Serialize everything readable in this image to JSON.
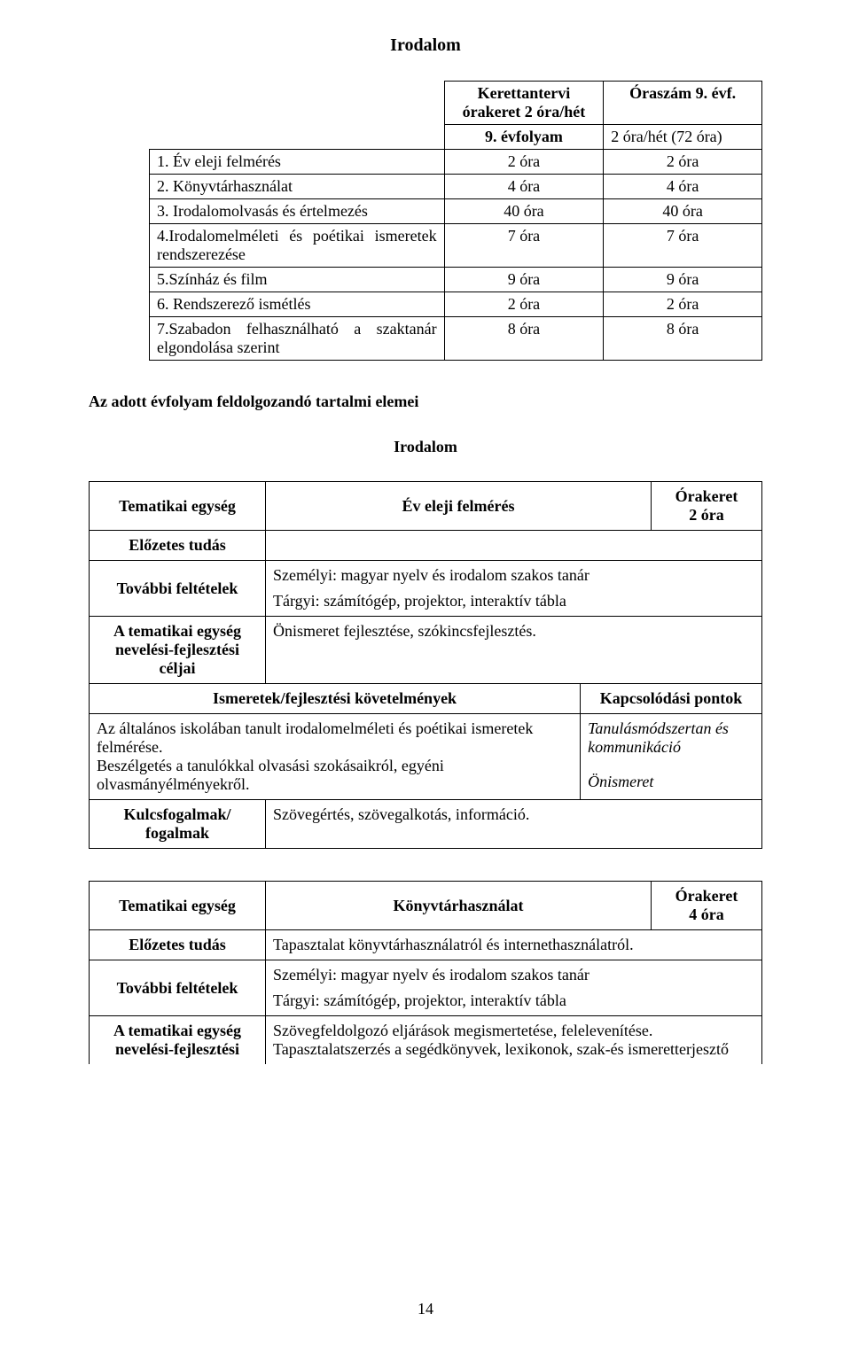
{
  "title": "Irodalom",
  "hours_table": {
    "header_col1_line1": "Kerettantervi",
    "header_col1_line2": "órakeret 2 óra/hét",
    "header_col2": "Óraszám 9. évf.",
    "grade_row_col1": "9. évfolyam",
    "grade_row_col2": "2 óra/hét (72 óra)",
    "rows": [
      {
        "label": "1. Év eleji felmérés",
        "a": "2 óra",
        "b": "2 óra"
      },
      {
        "label": "2. Könyvtárhasználat",
        "a": "4 óra",
        "b": "4 óra"
      },
      {
        "label": "3. Irodalomolvasás és értelmezés",
        "a": "40 óra",
        "b": "40 óra"
      },
      {
        "label": "4.Irodalomelméleti és poétikai ismeretek rendszerezése",
        "a": "7 óra",
        "b": "7 óra"
      },
      {
        "label": "5.Színház és film",
        "a": "9 óra",
        "b": "9 óra"
      },
      {
        "label": "6. Rendszerező ismétlés",
        "a": "2 óra",
        "b": "2 óra"
      },
      {
        "label": "7.Szabadon felhasználható a szaktanár elgondolása szerint",
        "a": "8 óra",
        "b": "8 óra"
      }
    ]
  },
  "section_heading": "Az adott évfolyam feldolgozandó tartalmi elemei",
  "sub_heading": "Irodalom",
  "unit1": {
    "row_tematikai_label": "Tematikai egység",
    "row_tematikai_value": "Év eleji felmérés",
    "orakeret_label": "Órakeret",
    "orakeret_value": "2 óra",
    "elozetes_label": "Előzetes tudás",
    "tovabbi_label": "További feltételek",
    "tovabbi_line1": "Személyi: magyar nyelv és irodalom szakos tanár",
    "tovabbi_line2": "Tárgyi: számítógép, projektor, interaktív tábla",
    "celjai_label": "A tematikai egység nevelési-fejlesztési céljai",
    "celjai_value": "Önismeret fejlesztése, szókincsfejlesztés.",
    "req_header": "Ismeretek/fejlesztési követelmények",
    "kp_header": "Kapcsolódási pontok",
    "req_body_line1": "Az általános iskolában tanult irodalomelméleti és poétikai ismeretek felmérése.",
    "req_body_line2": "Beszélgetés a tanulókkal olvasási szokásaikról, egyéni olvasmányélményekről.",
    "kp_line1": "Tanulásmódszertan és kommunikáció",
    "kp_line2": "Önismeret",
    "kulcs_label": "Kulcsfogalmak/ fogalmak",
    "kulcs_value": "Szövegértés, szövegalkotás, információ."
  },
  "unit2": {
    "row_tematikai_label": "Tematikai egység",
    "row_tematikai_value": "Könyvtárhasználat",
    "orakeret_label": "Órakeret",
    "orakeret_value": "4 óra",
    "elozetes_label": "Előzetes tudás",
    "elozetes_value": "Tapasztalat könyvtárhasználatról és internethasználatról.",
    "tovabbi_label": "További feltételek",
    "tovabbi_line1": "Személyi: magyar nyelv és irodalom szakos tanár",
    "tovabbi_line2": "Tárgyi: számítógép, projektor, interaktív tábla",
    "celjai_label": "A tematikai egység nevelési-fejlesztési",
    "celjai_value": "Szövegfeldolgozó eljárások megismertetése, felelevenítése. Tapasztalatszerzés a segédkönyvek, lexikonok, szak-és ismeretterjesztő"
  },
  "page_number": "14"
}
